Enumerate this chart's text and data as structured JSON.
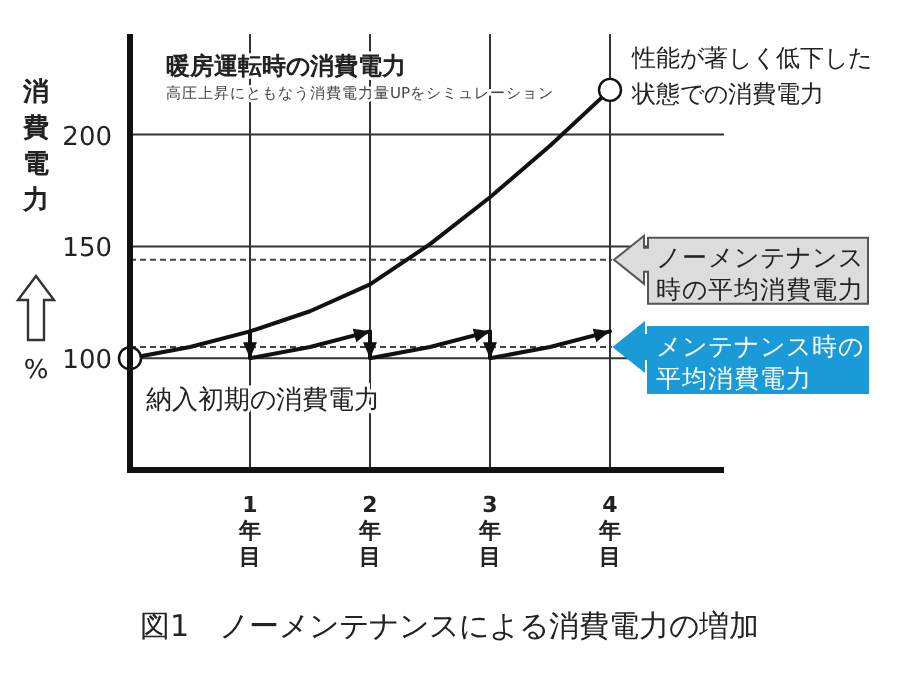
{
  "chart_data": {
    "type": "line",
    "title": "暖房運転時の消費電力",
    "subtitle": "高圧上昇にともなう消費電力量UPをシミュレーション",
    "ylabel": "消費電力",
    "annotations": [
      "図1　ノーメンテナンスによる消費電力の増加",
      "%",
      {
        "text": "性能が著しく低下した状態での消費電力",
        "x": 4,
        "y": 220
      },
      {
        "text": "納入初期の消費電力",
        "x": 0,
        "y": 100
      }
    ],
    "xlim": [
      0,
      4.95
    ],
    "ylim": [
      50,
      245
    ],
    "xticks": [
      {
        "value": 1,
        "label": "1年目"
      },
      {
        "value": 2,
        "label": "2年目"
      },
      {
        "value": 3,
        "label": "3年目"
      },
      {
        "value": 4,
        "label": "4年目"
      }
    ],
    "yticks": [
      100,
      150,
      200
    ],
    "grid": true,
    "ref_lines": [
      {
        "axis": "y",
        "value": 144,
        "label": "ノーメンテナンス時の平均消費電力",
        "color": "#444444",
        "line_style": "dashed"
      },
      {
        "axis": "y",
        "value": 105,
        "label": "メンテナンス時の平均消費電力",
        "color": "#444444",
        "line_style": "dashed"
      }
    ],
    "series": [
      {
        "x": [
          0,
          0.5,
          1,
          1.5,
          2,
          2.5,
          3,
          3.5,
          4
        ],
        "values": [
          100,
          105,
          112,
          121,
          133,
          151,
          172,
          195,
          220
        ],
        "color": "#111111"
      },
      {
        "x": [
          1,
          1,
          1.5,
          2,
          2,
          2.5,
          3,
          3,
          3.5,
          4
        ],
        "values": [
          112,
          100,
          105,
          112,
          100,
          105,
          112,
          100,
          105,
          112
        ],
        "color": "#111111"
      },
      {
        "type": "scatter",
        "marker": "circle",
        "x": [
          0,
          4
        ],
        "values": [
          100,
          220
        ],
        "color": "#111111"
      }
    ]
  }
}
